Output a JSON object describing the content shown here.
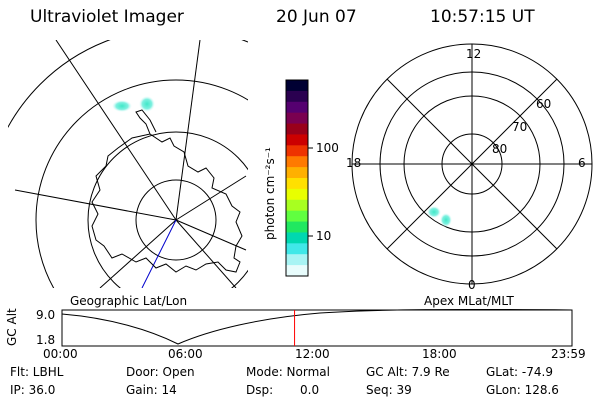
{
  "header": {
    "title": "Ultraviolet Imager",
    "date": "20 Jun 07",
    "time": "10:57:15 UT"
  },
  "geo_panel": {
    "label": "Geographic Lat/Lon"
  },
  "colorbar": {
    "unit_label": "photon cm⁻²s⁻¹",
    "ticks": [
      "100",
      "10"
    ],
    "colors": [
      "#000033",
      "#2a0050",
      "#550070",
      "#7a0050",
      "#99001a",
      "#cc0000",
      "#ee3300",
      "#ff7a00",
      "#ffb000",
      "#ffe000",
      "#e8ff00",
      "#a8ff20",
      "#60ff40",
      "#20e860",
      "#00d8b0",
      "#40e8e8",
      "#a8f4f4",
      "#e8fcfc"
    ]
  },
  "polar_panel": {
    "label": "Apex MLat/MLT",
    "mlt_labels": [
      "12",
      "18",
      "6",
      "0"
    ],
    "mlat_labels": [
      "60",
      "70",
      "80"
    ]
  },
  "altitude_plot": {
    "ylabel": "GC Alt",
    "yticks": [
      "9.0",
      "1.8"
    ],
    "xticks": [
      "00:00",
      "06:00",
      "12:00",
      "18:00",
      "23:59"
    ],
    "current_time_marker_frac": 0.456,
    "marker_color": "#ff0000"
  },
  "info": {
    "filter": "Flt: LBHL",
    "ip": "IP: 36.0",
    "door": "Door: Open",
    "gain": "Gain: 14",
    "mode": "Mode: Normal",
    "dsp_label": "Dsp:",
    "dsp_value": "0.0",
    "gc_alt": "GC Alt: 7.9 Re",
    "seq": "Seq: 39",
    "glat": "GLat: -74.9",
    "glon": "GLon: 128.6"
  }
}
